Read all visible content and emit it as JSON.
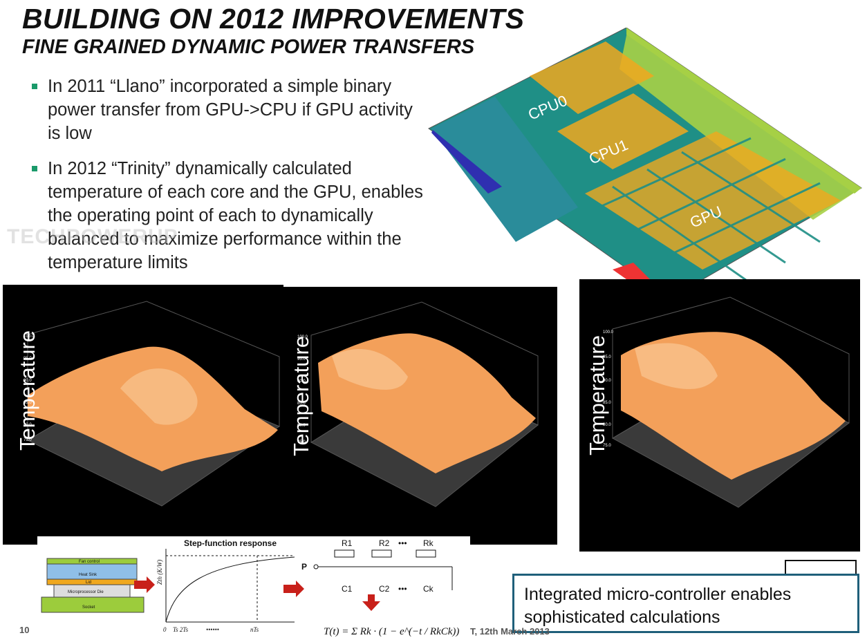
{
  "slide": {
    "title": "BUILDING ON 2012 IMPROVEMENTS",
    "subtitle": "FINE GRAINED DYNAMIC POWER TRANSFERS",
    "bullets": [
      "In 2011 “Llano” incorporated a simple binary power transfer from GPU->CPU if GPU activity is low",
      "In 2012 “Trinity” dynamically calculated temperature of each core and the GPU, enables the operating point of each to dynamically balanced to maximize performance within the temperature limits"
    ],
    "watermark": "TECHPOWERUP",
    "page_number": "10",
    "footer": "T, 12th March 2013"
  },
  "die": {
    "labels": [
      "CPU0",
      "CPU1",
      "GPU"
    ],
    "colors": {
      "base": "#1f8f86",
      "block": "#f0a81e",
      "io": "#9ccc3c",
      "edge": "#2f2fb0"
    }
  },
  "plots": {
    "axis_label": "Temperature",
    "ticks": [
      "100.0",
      "95.0",
      "90.0",
      "85.0",
      "80.0",
      "75.0"
    ],
    "surface_color": "#f3a05a"
  },
  "thermal": {
    "stack_layers": [
      "Fan control",
      "Heat Sink",
      "Lid",
      "Microprocessor Die",
      "Socket"
    ],
    "chart_title": "Step-function response",
    "y_label": "Zth (K/W)",
    "x_ticks": [
      "0",
      "Ts 2Ts",
      "••••••",
      "nTs"
    ],
    "resistors": [
      "R1",
      "R2",
      "•••",
      "Rk"
    ],
    "capacitors": [
      "C1",
      "C2",
      "•••",
      "Ck"
    ],
    "input_label": "P",
    "formula": "T(t) = Σ Rk · (1 − e^(−t / RkCk))"
  },
  "callout": {
    "text": "Integrated micro-controller enables sophisticated calculations"
  }
}
